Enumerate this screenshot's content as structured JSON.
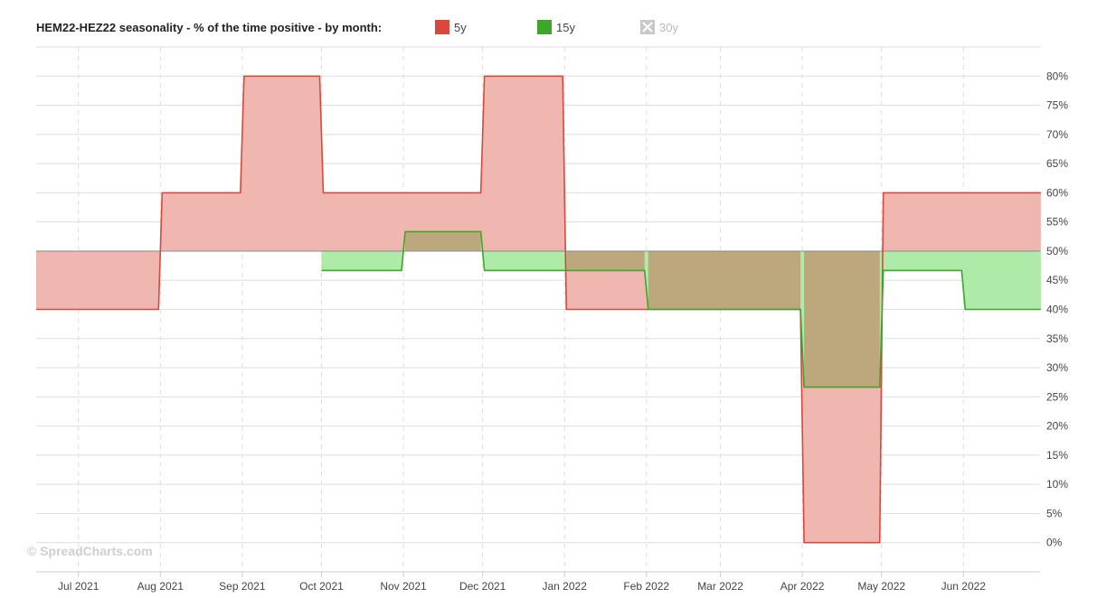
{
  "chart_data": {
    "type": "area",
    "title": "HEM22-HEZ22 seasonality - % of the time positive - by month:",
    "baseline": 50,
    "ylim": [
      -5,
      85
    ],
    "y_ticks": [
      0,
      5,
      10,
      15,
      20,
      25,
      30,
      35,
      40,
      45,
      50,
      55,
      60,
      65,
      70,
      75,
      80
    ],
    "y_tick_suffix": "%",
    "x_start": "2021-06-15",
    "x_end": "2022-06-30",
    "x_ticks": [
      {
        "date": "2021-07-01",
        "label": "Jul 2021"
      },
      {
        "date": "2021-08-01",
        "label": "Aug 2021"
      },
      {
        "date": "2021-09-01",
        "label": "Sep 2021"
      },
      {
        "date": "2021-10-01",
        "label": "Oct 2021"
      },
      {
        "date": "2021-11-01",
        "label": "Nov 2021"
      },
      {
        "date": "2021-12-01",
        "label": "Dec 2021"
      },
      {
        "date": "2022-01-01",
        "label": "Jan 2022"
      },
      {
        "date": "2022-02-01",
        "label": "Feb 2022"
      },
      {
        "date": "2022-03-01",
        "label": "Mar 2022"
      },
      {
        "date": "2022-04-01",
        "label": "Apr 2022"
      },
      {
        "date": "2022-05-01",
        "label": "May 2022"
      },
      {
        "date": "2022-06-01",
        "label": "Jun 2022"
      }
    ],
    "series": [
      {
        "name": "5y",
        "color": "#d9483b",
        "fill": "#f0b7b1",
        "visible": true,
        "segments": [
          {
            "start": "2021-06-15",
            "end": "2021-07-31",
            "value": 40
          },
          {
            "start": "2021-08-01",
            "end": "2021-08-31",
            "value": 60
          },
          {
            "start": "2021-09-01",
            "end": "2021-09-30",
            "value": 80
          },
          {
            "start": "2021-10-01",
            "end": "2021-11-30",
            "value": 60
          },
          {
            "start": "2021-12-01",
            "end": "2021-12-31",
            "value": 80
          },
          {
            "start": "2022-01-01",
            "end": "2022-03-31",
            "value": 40
          },
          {
            "start": "2022-04-01",
            "end": "2022-04-30",
            "value": 0
          },
          {
            "start": "2022-05-01",
            "end": "2022-06-30",
            "value": 60
          }
        ]
      },
      {
        "name": "15y",
        "color": "#3fa52b",
        "fill": "#aeeaa8",
        "visible": true,
        "segments": [
          {
            "start": "2021-10-01",
            "end": "2021-10-31",
            "value": 46.67
          },
          {
            "start": "2021-11-01",
            "end": "2021-11-30",
            "value": 53.33
          },
          {
            "start": "2021-12-01",
            "end": "2022-01-31",
            "value": 46.67
          },
          {
            "start": "2022-02-01",
            "end": "2022-03-31",
            "value": 40
          },
          {
            "start": "2022-04-01",
            "end": "2022-04-30",
            "value": 26.67
          },
          {
            "start": "2022-05-01",
            "end": "2022-05-31",
            "value": 46.67
          },
          {
            "start": "2022-06-01",
            "end": "2022-06-30",
            "value": 40
          }
        ]
      },
      {
        "name": "30y",
        "color": "#c8c8c8",
        "visible": false,
        "segments": []
      }
    ],
    "overlap_fill": "#bda87d",
    "grid": true,
    "legend_position": "top"
  },
  "watermark": "© SpreadCharts.com"
}
